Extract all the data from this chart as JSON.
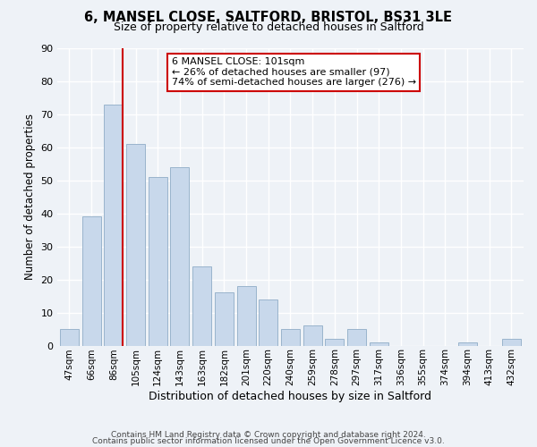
{
  "title": "6, MANSEL CLOSE, SALTFORD, BRISTOL, BS31 3LE",
  "subtitle": "Size of property relative to detached houses in Saltford",
  "xlabel": "Distribution of detached houses by size in Saltford",
  "ylabel": "Number of detached properties",
  "bar_color": "#c8d8eb",
  "bar_edgecolor": "#9ab4cc",
  "background_color": "#eef2f7",
  "grid_color": "#ffffff",
  "categories": [
    "47sqm",
    "66sqm",
    "86sqm",
    "105sqm",
    "124sqm",
    "143sqm",
    "163sqm",
    "182sqm",
    "201sqm",
    "220sqm",
    "240sqm",
    "259sqm",
    "278sqm",
    "297sqm",
    "317sqm",
    "336sqm",
    "355sqm",
    "374sqm",
    "394sqm",
    "413sqm",
    "432sqm"
  ],
  "values": [
    5,
    39,
    73,
    61,
    51,
    54,
    24,
    16,
    18,
    14,
    5,
    6,
    2,
    5,
    1,
    0,
    0,
    0,
    1,
    0,
    2
  ],
  "vline_color": "#cc0000",
  "annotation_title": "6 MANSEL CLOSE: 101sqm",
  "annotation_line1": "← 26% of detached houses are smaller (97)",
  "annotation_line2": "74% of semi-detached houses are larger (276) →",
  "annotation_box_facecolor": "#ffffff",
  "annotation_box_edgecolor": "#cc0000",
  "ylim": [
    0,
    90
  ],
  "yticks": [
    0,
    10,
    20,
    30,
    40,
    50,
    60,
    70,
    80,
    90
  ],
  "footer1": "Contains HM Land Registry data © Crown copyright and database right 2024.",
  "footer2": "Contains public sector information licensed under the Open Government Licence v3.0."
}
